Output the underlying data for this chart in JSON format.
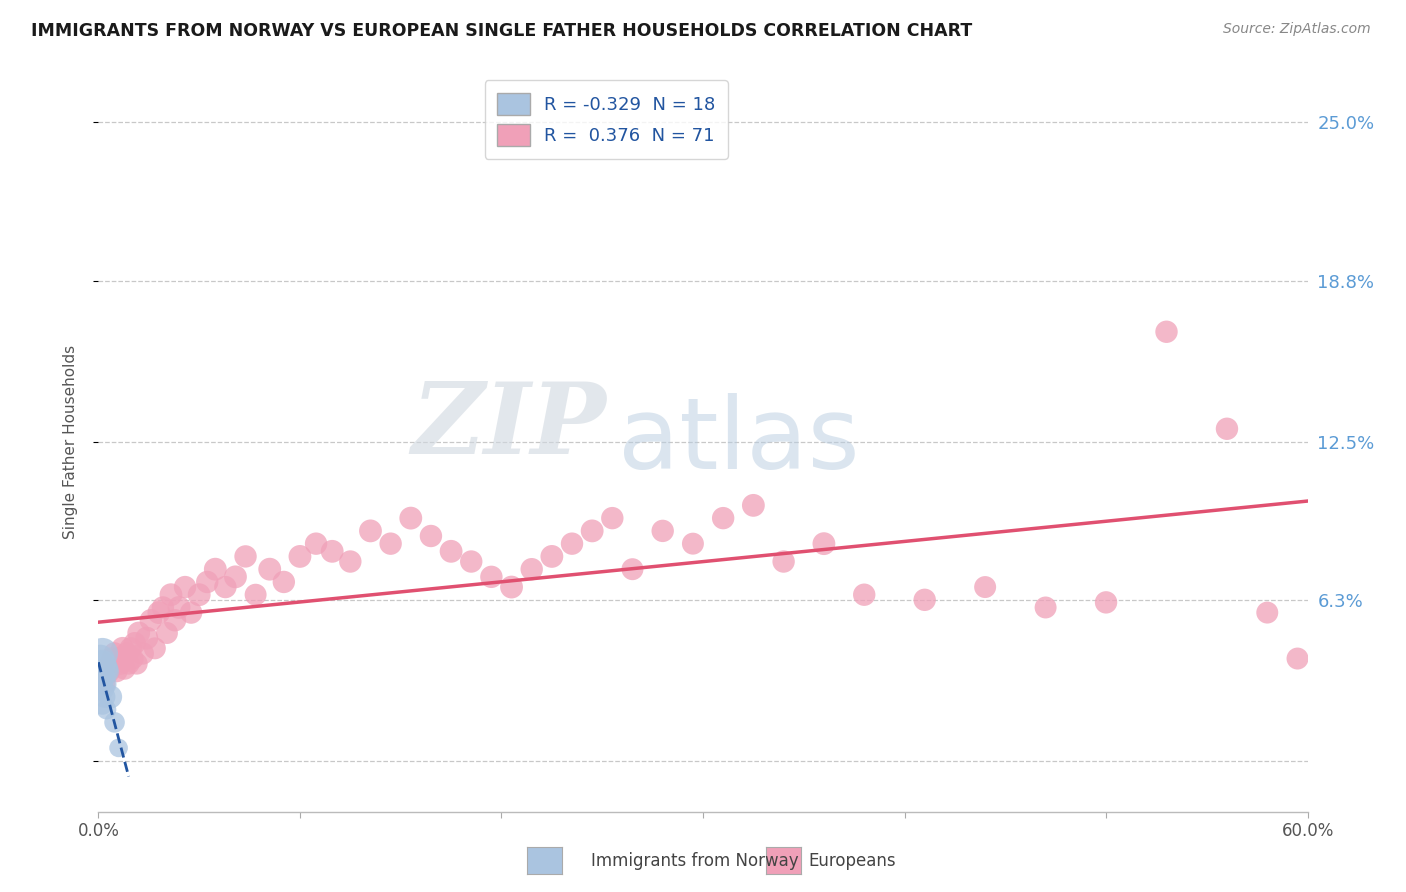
{
  "title": "IMMIGRANTS FROM NORWAY VS EUROPEAN SINGLE FATHER HOUSEHOLDS CORRELATION CHART",
  "source": "Source: ZipAtlas.com",
  "ylabel": "Single Father Households",
  "xmin": 0.0,
  "xmax": 0.6,
  "ymin": -0.02,
  "ymax": 0.27,
  "yticks": [
    0.0,
    0.063,
    0.125,
    0.188,
    0.25
  ],
  "ytick_labels": [
    "",
    "6.3%",
    "12.5%",
    "18.8%",
    "25.0%"
  ],
  "right_ytick_color": "#5b9bd5",
  "watermark_zip": "ZIP",
  "watermark_atlas": "atlas",
  "legend_blue_label": "R = -0.329  N = 18",
  "legend_pink_label": "R =  0.376  N = 71",
  "blue_scatter_color": "#aac4e0",
  "blue_line_color": "#2255a0",
  "pink_scatter_color": "#f0a0b8",
  "pink_line_color": "#e05070",
  "background_color": "#ffffff",
  "grid_color": "#c8c8c8",
  "norway_x": [
    0.001,
    0.001,
    0.001,
    0.001,
    0.001,
    0.002,
    0.002,
    0.002,
    0.002,
    0.002,
    0.003,
    0.003,
    0.003,
    0.004,
    0.004,
    0.006,
    0.008,
    0.01
  ],
  "norway_y": [
    0.04,
    0.038,
    0.035,
    0.032,
    0.028,
    0.042,
    0.038,
    0.033,
    0.028,
    0.022,
    0.036,
    0.03,
    0.025,
    0.035,
    0.02,
    0.025,
    0.015,
    0.005
  ],
  "norway_s": [
    400,
    350,
    300,
    280,
    250,
    500,
    400,
    350,
    280,
    220,
    380,
    300,
    250,
    320,
    200,
    280,
    220,
    180
  ],
  "european_x": [
    0.003,
    0.005,
    0.006,
    0.007,
    0.008,
    0.009,
    0.01,
    0.011,
    0.012,
    0.013,
    0.014,
    0.015,
    0.016,
    0.017,
    0.018,
    0.019,
    0.02,
    0.022,
    0.024,
    0.026,
    0.028,
    0.03,
    0.032,
    0.034,
    0.036,
    0.038,
    0.04,
    0.043,
    0.046,
    0.05,
    0.054,
    0.058,
    0.063,
    0.068,
    0.073,
    0.078,
    0.085,
    0.092,
    0.1,
    0.108,
    0.116,
    0.125,
    0.135,
    0.145,
    0.155,
    0.165,
    0.175,
    0.185,
    0.195,
    0.205,
    0.215,
    0.225,
    0.235,
    0.245,
    0.255,
    0.265,
    0.28,
    0.295,
    0.31,
    0.325,
    0.34,
    0.36,
    0.38,
    0.41,
    0.44,
    0.47,
    0.5,
    0.53,
    0.56,
    0.58,
    0.595
  ],
  "european_y": [
    0.03,
    0.035,
    0.038,
    0.04,
    0.042,
    0.035,
    0.04,
    0.038,
    0.044,
    0.036,
    0.042,
    0.038,
    0.044,
    0.04,
    0.046,
    0.038,
    0.05,
    0.042,
    0.048,
    0.055,
    0.044,
    0.058,
    0.06,
    0.05,
    0.065,
    0.055,
    0.06,
    0.068,
    0.058,
    0.065,
    0.07,
    0.075,
    0.068,
    0.072,
    0.08,
    0.065,
    0.075,
    0.07,
    0.08,
    0.085,
    0.082,
    0.078,
    0.09,
    0.085,
    0.095,
    0.088,
    0.082,
    0.078,
    0.072,
    0.068,
    0.075,
    0.08,
    0.085,
    0.09,
    0.095,
    0.075,
    0.09,
    0.085,
    0.095,
    0.1,
    0.078,
    0.085,
    0.065,
    0.063,
    0.068,
    0.06,
    0.062,
    0.168,
    0.13,
    0.058,
    0.04
  ],
  "european_s": [
    250,
    280,
    260,
    270,
    260,
    250,
    270,
    260,
    270,
    250,
    260,
    250,
    260,
    250,
    260,
    250,
    270,
    260,
    270,
    260,
    250,
    270,
    260,
    250,
    270,
    260,
    270,
    260,
    260,
    270,
    260,
    270,
    260,
    270,
    260,
    250,
    270,
    260,
    270,
    260,
    270,
    260,
    270,
    260,
    270,
    260,
    270,
    260,
    260,
    270,
    260,
    270,
    260,
    270,
    260,
    250,
    260,
    250,
    260,
    270,
    260,
    270,
    260,
    260,
    250,
    250,
    260,
    260,
    260,
    250,
    250
  ]
}
